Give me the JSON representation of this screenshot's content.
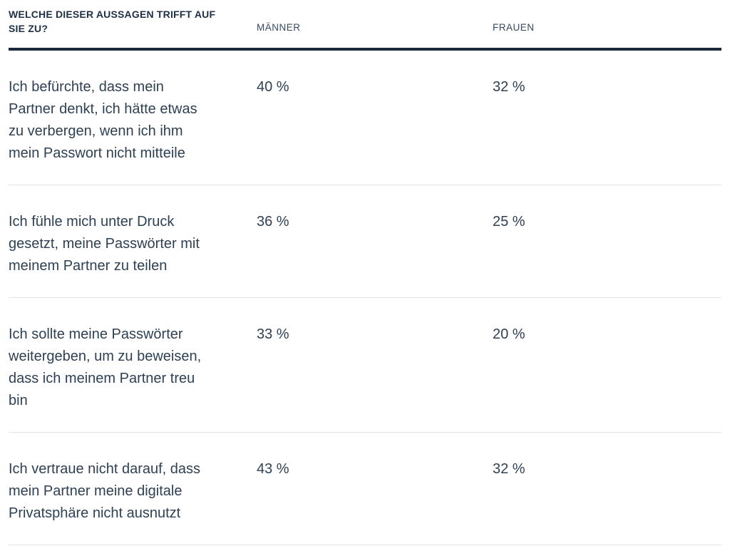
{
  "colors": {
    "background": "#ffffff",
    "heading_text": "#1f3044",
    "column_header_text": "#36495e",
    "body_text": "#2e4154",
    "header_rule": "#1b2a3a",
    "row_separator": "#e0e2e5"
  },
  "table": {
    "header": {
      "question": "WELCHE DIESER AUSSAGEN TRIFFT AUF\nSIE ZU?",
      "men": "MÄNNER",
      "women": "FRAUEN"
    },
    "rows": [
      {
        "statement": "Ich befürchte, dass mein\nPartner denkt, ich hätte etwas\nzu verbergen, wenn ich ihm\nmein Passwort nicht mitteile",
        "men": "40 %",
        "women": "32 %"
      },
      {
        "statement": "Ich fühle mich unter Druck\ngesetzt, meine Passwörter mit\nmeinem Partner zu teilen",
        "men": "36 %",
        "women": "25 %"
      },
      {
        "statement": "Ich sollte meine Passwörter\nweitergeben, um zu beweisen,\ndass ich meinem Partner treu\nbin",
        "men": "33 %",
        "women": "20 %"
      },
      {
        "statement": "Ich vertraue nicht darauf, dass\nmein Partner meine digitale\nPrivatsphäre nicht ausnutzt",
        "men": "43 %",
        "women": "32 %"
      }
    ]
  },
  "chart_data": {
    "type": "table",
    "title": "Welche dieser Aussagen trifft auf Sie zu?",
    "columns": [
      "WELCHE DIESER AUSSAGEN TRIFFT AUF SIE ZU?",
      "MÄNNER",
      "FRAUEN"
    ],
    "categories": [
      "Ich befürchte, dass mein Partner denkt, ich hätte etwas zu verbergen, wenn ich ihm mein Passwort nicht mitteile",
      "Ich fühle mich unter Druck gesetzt, meine Passwörter mit meinem Partner zu teilen",
      "Ich sollte meine Passwörter weitergeben, um zu beweisen, dass ich meinem Partner treu bin",
      "Ich vertraue nicht darauf, dass mein Partner meine digitale Privatsphäre nicht ausnutzt"
    ],
    "series": [
      {
        "name": "Männer",
        "values": [
          40,
          36,
          33,
          43
        ],
        "unit": "%"
      },
      {
        "name": "Frauen",
        "values": [
          32,
          25,
          20,
          32
        ],
        "unit": "%"
      }
    ]
  }
}
